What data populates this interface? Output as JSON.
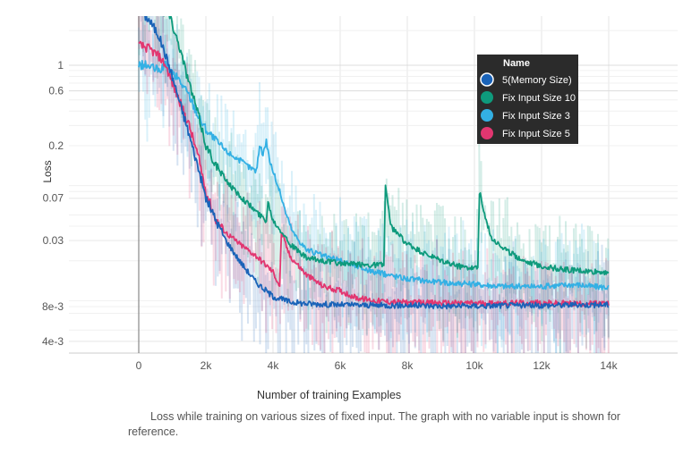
{
  "chart_data": {
    "type": "line",
    "xlabel": "Number of training Examples",
    "ylabel": "Loss",
    "x_scale": "linear",
    "y_scale": "log",
    "xlim": [
      -2000,
      16000
    ],
    "ylim": [
      0.003,
      3
    ],
    "x_ticks": [
      {
        "value": 0,
        "label": "0"
      },
      {
        "value": 2000,
        "label": "2k"
      },
      {
        "value": 4000,
        "label": "4k"
      },
      {
        "value": 6000,
        "label": "6k"
      },
      {
        "value": 8000,
        "label": "8k"
      },
      {
        "value": 10000,
        "label": "10k"
      },
      {
        "value": 12000,
        "label": "12k"
      },
      {
        "value": 14000,
        "label": "14k"
      }
    ],
    "y_ticks": [
      {
        "value": 1,
        "label": "1"
      },
      {
        "value": 0.6,
        "label": "0.6"
      },
      {
        "value": 0.2,
        "label": "0.2"
      },
      {
        "value": 0.07,
        "label": "0.07"
      },
      {
        "value": 0.03,
        "label": "0.03"
      },
      {
        "value": 0.008,
        "label": "8e-3"
      },
      {
        "value": 0.004,
        "label": "4e-3"
      }
    ],
    "grid": true,
    "legend": {
      "position": "top-right",
      "title": "Name"
    },
    "series": [
      {
        "name": "5(Memory Size)",
        "color": "#1a63b8",
        "x": [
          0,
          300,
          600,
          900,
          1200,
          1500,
          1800,
          2000,
          2300,
          2600,
          3000,
          3500,
          4000,
          4500,
          5000,
          6000,
          7000,
          8000,
          9000,
          10000,
          11000,
          12000,
          13000,
          14000
        ],
        "y": [
          3.0,
          2.5,
          1.8,
          1.0,
          0.5,
          0.25,
          0.12,
          0.07,
          0.045,
          0.03,
          0.02,
          0.013,
          0.0098,
          0.0088,
          0.0085,
          0.0083,
          0.0082,
          0.0082,
          0.0081,
          0.0081,
          0.0082,
          0.0082,
          0.0083,
          0.0083
        ]
      },
      {
        "name": "Fix Input Size 10",
        "color": "#0e9a7c",
        "x": [
          0,
          300,
          600,
          900,
          1200,
          1500,
          1800,
          2000,
          2400,
          2800,
          3200,
          3600,
          3800,
          3850,
          4000,
          4300,
          4500,
          5000,
          5500,
          6000,
          6500,
          7000,
          7300,
          7350,
          7500,
          8000,
          8500,
          9000,
          9500,
          10000,
          10100,
          10150,
          10300,
          10500,
          11000,
          11500,
          12000,
          12500,
          13000,
          13500,
          14000
        ],
        "y": [
          3.0,
          3.0,
          3.0,
          2.8,
          1.5,
          0.7,
          0.35,
          0.2,
          0.12,
          0.085,
          0.065,
          0.05,
          0.045,
          0.065,
          0.045,
          0.035,
          0.028,
          0.021,
          0.02,
          0.019,
          0.0185,
          0.0185,
          0.0185,
          0.09,
          0.04,
          0.028,
          0.023,
          0.02,
          0.018,
          0.0175,
          0.0175,
          0.08,
          0.05,
          0.032,
          0.024,
          0.02,
          0.018,
          0.017,
          0.0165,
          0.016,
          0.016
        ]
      },
      {
        "name": "Fix Input Size 3",
        "color": "#33b0e4",
        "x": [
          0,
          200,
          400,
          600,
          800,
          1000,
          1200,
          1500,
          1800,
          2000,
          2300,
          2600,
          3000,
          3300,
          3500,
          3600,
          3700,
          3800,
          3900,
          4000,
          4200,
          4400,
          4600,
          5000,
          5500,
          6000,
          6500,
          7000,
          7500,
          8000,
          9000,
          10000,
          11000,
          12000,
          13000,
          13500,
          14000
        ],
        "y": [
          1.0,
          1.0,
          0.95,
          0.9,
          1.0,
          0.85,
          0.75,
          0.55,
          0.35,
          0.28,
          0.22,
          0.18,
          0.15,
          0.13,
          0.12,
          0.2,
          0.17,
          0.22,
          0.15,
          0.12,
          0.08,
          0.05,
          0.035,
          0.025,
          0.022,
          0.02,
          0.018,
          0.016,
          0.015,
          0.014,
          0.013,
          0.0125,
          0.012,
          0.012,
          0.0125,
          0.012,
          0.0118
        ]
      },
      {
        "name": "Fix Input Size 5",
        "color": "#e23670",
        "x": [
          0,
          300,
          600,
          800,
          1000,
          1200,
          1500,
          1800,
          2000,
          2300,
          2600,
          3000,
          3500,
          4000,
          4200,
          4250,
          4300,
          4500,
          5000,
          5500,
          6000,
          6500,
          7000,
          7500,
          8000,
          9000,
          10000,
          11000,
          12000,
          13000,
          14000
        ],
        "y": [
          1.5,
          1.4,
          1.2,
          1.0,
          0.7,
          0.5,
          0.3,
          0.15,
          0.08,
          0.045,
          0.035,
          0.028,
          0.022,
          0.016,
          0.012,
          0.035,
          0.032,
          0.022,
          0.015,
          0.012,
          0.011,
          0.0095,
          0.009,
          0.0088,
          0.0087,
          0.0086,
          0.0086,
          0.0086,
          0.0086,
          0.0085,
          0.0085
        ]
      }
    ]
  },
  "caption": "Loss  while training on various sizes of fixed input. The graph with no variable input is shown for reference."
}
